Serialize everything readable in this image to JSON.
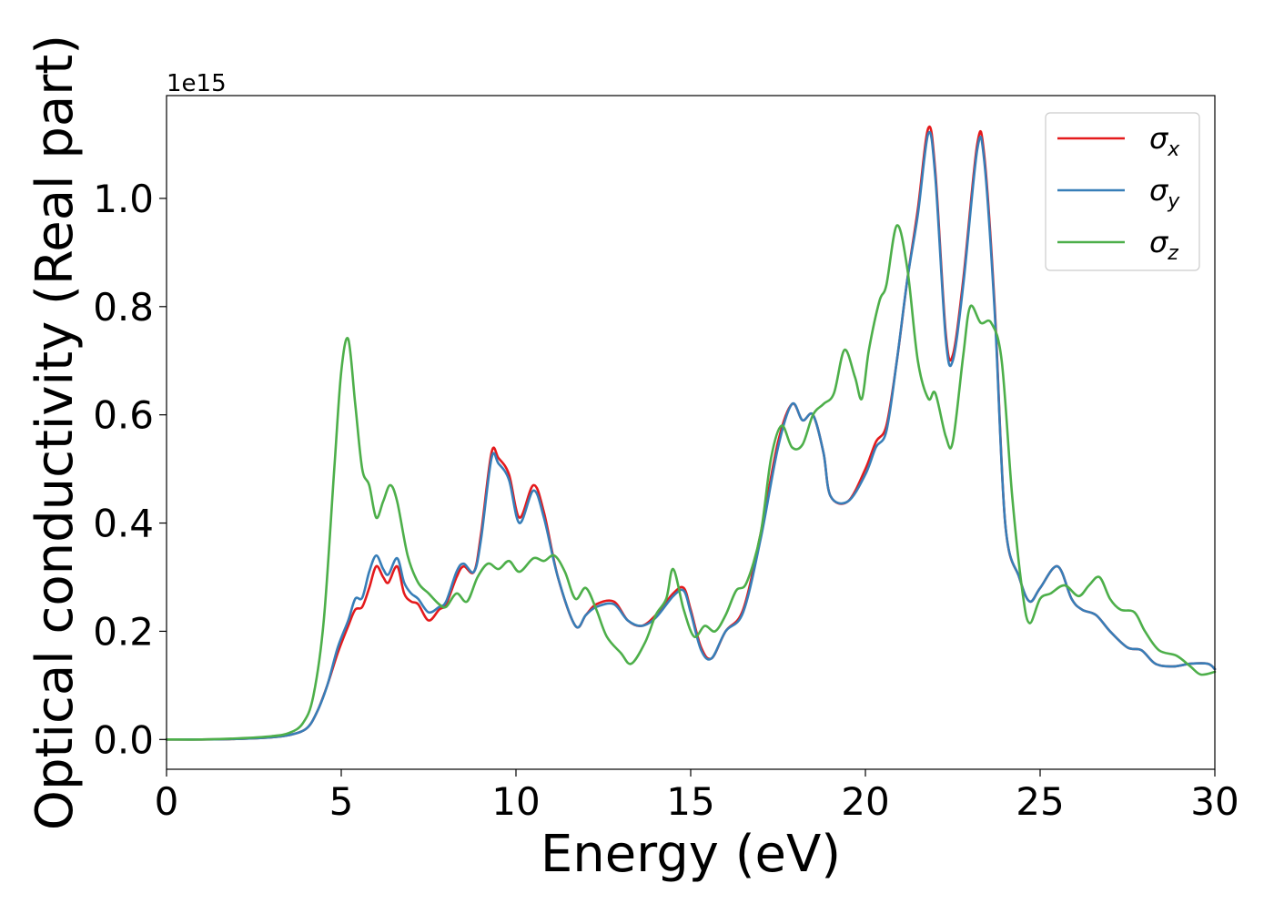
{
  "chart_data": {
    "type": "line",
    "title": "",
    "xlabel": "Energy (eV)",
    "ylabel": "Optical conductivity (Real part)",
    "y_offset_label": "1e15",
    "xlim": [
      0,
      30
    ],
    "ylim": [
      -0.055,
      1.19
    ],
    "x_ticks": [
      {
        "value": 0,
        "label": "0"
      },
      {
        "value": 5,
        "label": "5"
      },
      {
        "value": 10,
        "label": "10"
      },
      {
        "value": 15,
        "label": "15"
      },
      {
        "value": 20,
        "label": "20"
      },
      {
        "value": 25,
        "label": "25"
      },
      {
        "value": 30,
        "label": "30"
      }
    ],
    "y_ticks": [
      {
        "value": 0.0,
        "label": "0.0"
      },
      {
        "value": 0.2,
        "label": "0.2"
      },
      {
        "value": 0.4,
        "label": "0.4"
      },
      {
        "value": 0.6,
        "label": "0.6"
      },
      {
        "value": 0.8,
        "label": "0.8"
      },
      {
        "value": 1.0,
        "label": "1.0"
      }
    ],
    "grid": false,
    "legend_position": "top-right",
    "series": [
      {
        "name": "σx",
        "legend_symbol": "σ",
        "legend_subscript": "x",
        "color": "#e41a1c",
        "points": [
          [
            0,
            0
          ],
          [
            1,
            0
          ],
          [
            2,
            0.001
          ],
          [
            3,
            0.004
          ],
          [
            3.5,
            0.008
          ],
          [
            4,
            0.02
          ],
          [
            4.3,
            0.05
          ],
          [
            4.6,
            0.1
          ],
          [
            4.9,
            0.16
          ],
          [
            5.2,
            0.21
          ],
          [
            5.4,
            0.24
          ],
          [
            5.6,
            0.245
          ],
          [
            5.8,
            0.28
          ],
          [
            6.0,
            0.32
          ],
          [
            6.2,
            0.3
          ],
          [
            6.35,
            0.29
          ],
          [
            6.6,
            0.32
          ],
          [
            6.8,
            0.27
          ],
          [
            7.0,
            0.255
          ],
          [
            7.2,
            0.25
          ],
          [
            7.5,
            0.22
          ],
          [
            7.8,
            0.24
          ],
          [
            8.0,
            0.25
          ],
          [
            8.3,
            0.3
          ],
          [
            8.5,
            0.32
          ],
          [
            8.8,
            0.31
          ],
          [
            9.0,
            0.38
          ],
          [
            9.3,
            0.53
          ],
          [
            9.5,
            0.52
          ],
          [
            9.8,
            0.49
          ],
          [
            10.1,
            0.41
          ],
          [
            10.5,
            0.47
          ],
          [
            10.8,
            0.42
          ],
          [
            11.2,
            0.3
          ],
          [
            11.7,
            0.21
          ],
          [
            12.0,
            0.23
          ],
          [
            12.3,
            0.25
          ],
          [
            12.8,
            0.255
          ],
          [
            13.2,
            0.22
          ],
          [
            13.6,
            0.21
          ],
          [
            14.0,
            0.23
          ],
          [
            14.5,
            0.27
          ],
          [
            14.8,
            0.28
          ],
          [
            15.0,
            0.24
          ],
          [
            15.3,
            0.17
          ],
          [
            15.6,
            0.15
          ],
          [
            16.0,
            0.2
          ],
          [
            16.5,
            0.24
          ],
          [
            17.0,
            0.38
          ],
          [
            17.5,
            0.55
          ],
          [
            17.9,
            0.62
          ],
          [
            18.2,
            0.59
          ],
          [
            18.5,
            0.6
          ],
          [
            18.8,
            0.53
          ],
          [
            19.0,
            0.45
          ],
          [
            19.5,
            0.44
          ],
          [
            20.0,
            0.5
          ],
          [
            20.3,
            0.55
          ],
          [
            20.6,
            0.58
          ],
          [
            20.9,
            0.7
          ],
          [
            21.2,
            0.85
          ],
          [
            21.5,
            0.98
          ],
          [
            21.8,
            1.13
          ],
          [
            22.0,
            1.05
          ],
          [
            22.3,
            0.75
          ],
          [
            22.5,
            0.71
          ],
          [
            22.8,
            0.85
          ],
          [
            23.2,
            1.1
          ],
          [
            23.4,
            1.08
          ],
          [
            23.7,
            0.8
          ],
          [
            24.0,
            0.4
          ],
          [
            24.4,
            0.3
          ],
          [
            24.7,
            0.255
          ],
          [
            25.0,
            0.28
          ],
          [
            25.5,
            0.32
          ],
          [
            25.9,
            0.26
          ],
          [
            26.2,
            0.24
          ],
          [
            26.6,
            0.23
          ],
          [
            27.0,
            0.2
          ],
          [
            27.5,
            0.17
          ],
          [
            27.9,
            0.165
          ],
          [
            28.3,
            0.14
          ],
          [
            28.8,
            0.135
          ],
          [
            29.3,
            0.14
          ],
          [
            29.8,
            0.14
          ],
          [
            30,
            0.13
          ]
        ]
      },
      {
        "name": "σy",
        "legend_symbol": "σ",
        "legend_subscript": "y",
        "color": "#377eb8",
        "points": [
          [
            0,
            0
          ],
          [
            1,
            0
          ],
          [
            2,
            0.001
          ],
          [
            3,
            0.004
          ],
          [
            3.5,
            0.008
          ],
          [
            4,
            0.02
          ],
          [
            4.3,
            0.05
          ],
          [
            4.6,
            0.1
          ],
          [
            4.9,
            0.17
          ],
          [
            5.2,
            0.22
          ],
          [
            5.4,
            0.26
          ],
          [
            5.6,
            0.262
          ],
          [
            5.8,
            0.31
          ],
          [
            6.0,
            0.34
          ],
          [
            6.2,
            0.315
          ],
          [
            6.35,
            0.305
          ],
          [
            6.6,
            0.335
          ],
          [
            6.8,
            0.29
          ],
          [
            7.0,
            0.27
          ],
          [
            7.2,
            0.26
          ],
          [
            7.5,
            0.235
          ],
          [
            7.8,
            0.245
          ],
          [
            8.0,
            0.255
          ],
          [
            8.3,
            0.31
          ],
          [
            8.5,
            0.325
          ],
          [
            8.8,
            0.31
          ],
          [
            9.0,
            0.37
          ],
          [
            9.3,
            0.52
          ],
          [
            9.5,
            0.51
          ],
          [
            9.8,
            0.48
          ],
          [
            10.1,
            0.4
          ],
          [
            10.5,
            0.46
          ],
          [
            10.8,
            0.41
          ],
          [
            11.2,
            0.3
          ],
          [
            11.7,
            0.21
          ],
          [
            12.0,
            0.23
          ],
          [
            12.3,
            0.245
          ],
          [
            12.8,
            0.25
          ],
          [
            13.2,
            0.22
          ],
          [
            13.6,
            0.21
          ],
          [
            14.0,
            0.225
          ],
          [
            14.5,
            0.265
          ],
          [
            14.8,
            0.275
          ],
          [
            15.0,
            0.235
          ],
          [
            15.3,
            0.165
          ],
          [
            15.6,
            0.15
          ],
          [
            16.0,
            0.2
          ],
          [
            16.5,
            0.235
          ],
          [
            17.0,
            0.37
          ],
          [
            17.5,
            0.54
          ],
          [
            17.9,
            0.62
          ],
          [
            18.2,
            0.59
          ],
          [
            18.5,
            0.6
          ],
          [
            18.8,
            0.53
          ],
          [
            19.0,
            0.45
          ],
          [
            19.5,
            0.44
          ],
          [
            20.0,
            0.49
          ],
          [
            20.3,
            0.54
          ],
          [
            20.6,
            0.57
          ],
          [
            20.9,
            0.7
          ],
          [
            21.2,
            0.85
          ],
          [
            21.5,
            0.97
          ],
          [
            21.8,
            1.12
          ],
          [
            22.0,
            1.04
          ],
          [
            22.3,
            0.74
          ],
          [
            22.5,
            0.7
          ],
          [
            22.8,
            0.84
          ],
          [
            23.2,
            1.09
          ],
          [
            23.4,
            1.07
          ],
          [
            23.7,
            0.79
          ],
          [
            24.0,
            0.4
          ],
          [
            24.4,
            0.3
          ],
          [
            24.7,
            0.255
          ],
          [
            25.0,
            0.28
          ],
          [
            25.5,
            0.32
          ],
          [
            25.9,
            0.26
          ],
          [
            26.2,
            0.24
          ],
          [
            26.6,
            0.23
          ],
          [
            27.0,
            0.2
          ],
          [
            27.5,
            0.17
          ],
          [
            27.9,
            0.165
          ],
          [
            28.3,
            0.14
          ],
          [
            28.8,
            0.135
          ],
          [
            29.3,
            0.14
          ],
          [
            29.8,
            0.14
          ],
          [
            30,
            0.13
          ]
        ]
      },
      {
        "name": "σz",
        "legend_symbol": "σ",
        "legend_subscript": "z",
        "color": "#4daf4a",
        "points": [
          [
            0,
            0
          ],
          [
            1,
            0
          ],
          [
            2,
            0.002
          ],
          [
            3,
            0.006
          ],
          [
            3.5,
            0.012
          ],
          [
            3.9,
            0.03
          ],
          [
            4.2,
            0.08
          ],
          [
            4.5,
            0.22
          ],
          [
            4.8,
            0.5
          ],
          [
            5.0,
            0.68
          ],
          [
            5.2,
            0.74
          ],
          [
            5.4,
            0.62
          ],
          [
            5.6,
            0.5
          ],
          [
            5.8,
            0.47
          ],
          [
            6.0,
            0.41
          ],
          [
            6.2,
            0.44
          ],
          [
            6.4,
            0.47
          ],
          [
            6.6,
            0.44
          ],
          [
            6.9,
            0.34
          ],
          [
            7.2,
            0.29
          ],
          [
            7.5,
            0.27
          ],
          [
            7.8,
            0.25
          ],
          [
            8.0,
            0.245
          ],
          [
            8.3,
            0.27
          ],
          [
            8.6,
            0.255
          ],
          [
            8.9,
            0.3
          ],
          [
            9.2,
            0.325
          ],
          [
            9.5,
            0.315
          ],
          [
            9.8,
            0.33
          ],
          [
            10.1,
            0.31
          ],
          [
            10.5,
            0.335
          ],
          [
            10.8,
            0.33
          ],
          [
            11.1,
            0.34
          ],
          [
            11.4,
            0.31
          ],
          [
            11.7,
            0.26
          ],
          [
            12.0,
            0.28
          ],
          [
            12.3,
            0.24
          ],
          [
            12.6,
            0.19
          ],
          [
            13.0,
            0.16
          ],
          [
            13.3,
            0.14
          ],
          [
            13.7,
            0.18
          ],
          [
            14.0,
            0.23
          ],
          [
            14.3,
            0.26
          ],
          [
            14.5,
            0.315
          ],
          [
            14.8,
            0.24
          ],
          [
            15.1,
            0.19
          ],
          [
            15.4,
            0.21
          ],
          [
            15.7,
            0.2
          ],
          [
            16.0,
            0.23
          ],
          [
            16.3,
            0.275
          ],
          [
            16.6,
            0.29
          ],
          [
            17.0,
            0.38
          ],
          [
            17.3,
            0.52
          ],
          [
            17.6,
            0.58
          ],
          [
            17.9,
            0.54
          ],
          [
            18.2,
            0.545
          ],
          [
            18.5,
            0.6
          ],
          [
            18.8,
            0.62
          ],
          [
            19.1,
            0.64
          ],
          [
            19.4,
            0.72
          ],
          [
            19.7,
            0.67
          ],
          [
            19.9,
            0.63
          ],
          [
            20.1,
            0.72
          ],
          [
            20.4,
            0.81
          ],
          [
            20.6,
            0.84
          ],
          [
            20.9,
            0.95
          ],
          [
            21.2,
            0.87
          ],
          [
            21.5,
            0.7
          ],
          [
            21.8,
            0.63
          ],
          [
            22.0,
            0.64
          ],
          [
            22.3,
            0.56
          ],
          [
            22.5,
            0.55
          ],
          [
            22.8,
            0.71
          ],
          [
            23.0,
            0.8
          ],
          [
            23.3,
            0.77
          ],
          [
            23.6,
            0.77
          ],
          [
            23.9,
            0.7
          ],
          [
            24.2,
            0.45
          ],
          [
            24.5,
            0.27
          ],
          [
            24.7,
            0.215
          ],
          [
            25.0,
            0.26
          ],
          [
            25.3,
            0.27
          ],
          [
            25.7,
            0.285
          ],
          [
            26.1,
            0.265
          ],
          [
            26.4,
            0.285
          ],
          [
            26.7,
            0.3
          ],
          [
            27.0,
            0.26
          ],
          [
            27.3,
            0.24
          ],
          [
            27.7,
            0.235
          ],
          [
            28.0,
            0.2
          ],
          [
            28.4,
            0.165
          ],
          [
            28.9,
            0.155
          ],
          [
            29.3,
            0.135
          ],
          [
            29.6,
            0.12
          ],
          [
            30,
            0.125
          ]
        ]
      }
    ]
  }
}
